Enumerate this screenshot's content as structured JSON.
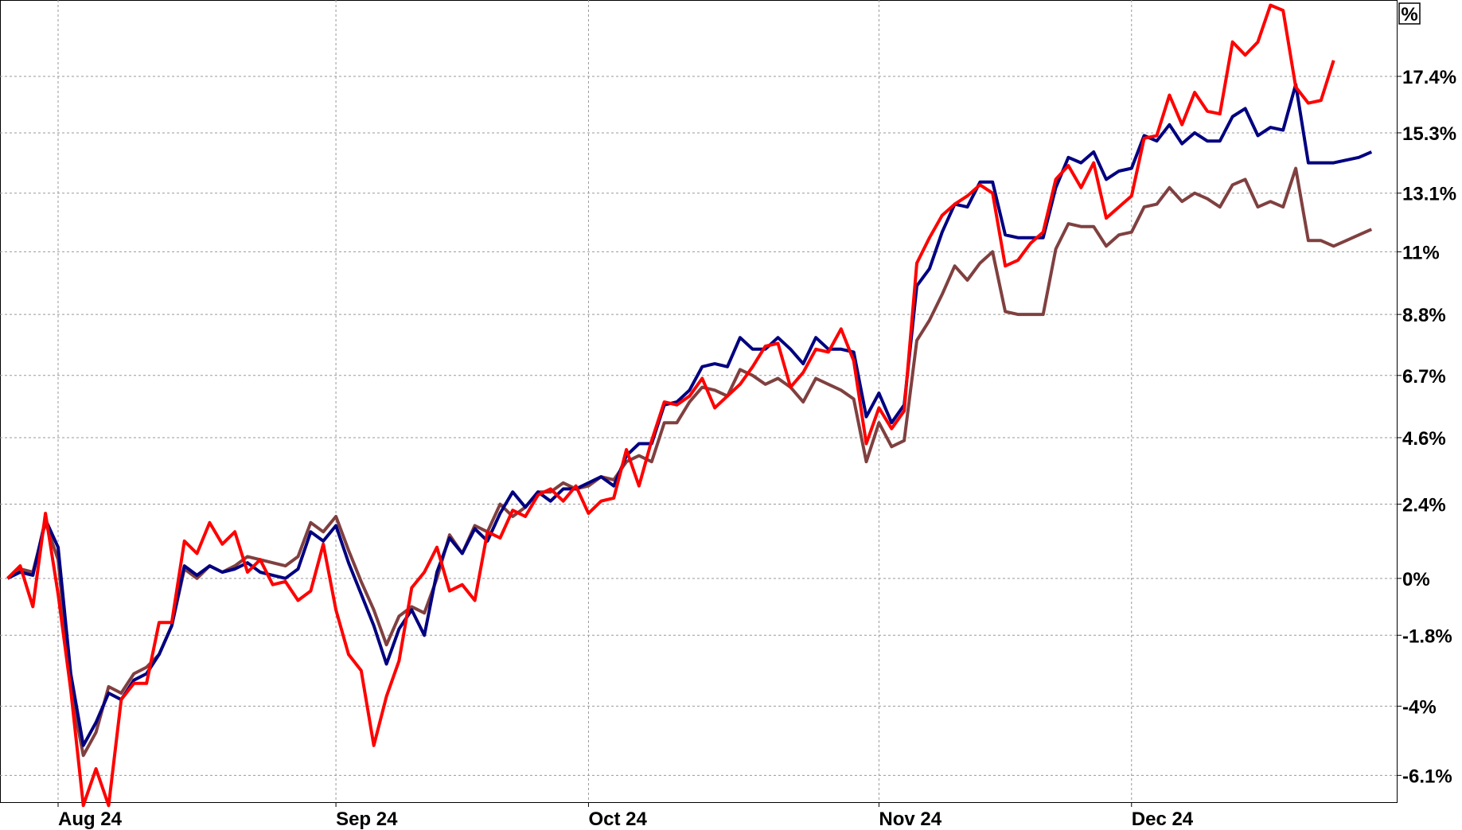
{
  "chart_data": {
    "type": "line",
    "y_label": "%",
    "log_scale": true,
    "grid": true,
    "x": [
      0,
      1,
      2,
      3,
      4,
      5,
      6,
      7,
      8,
      9,
      10,
      11,
      12,
      13,
      14,
      15,
      16,
      17,
      18,
      19,
      20,
      21,
      22,
      23,
      24,
      25,
      26,
      27,
      28,
      29,
      30,
      31,
      32,
      33,
      34,
      35,
      36,
      37,
      38,
      39,
      40,
      41,
      42,
      43,
      44,
      45,
      46,
      47,
      48,
      49,
      50,
      51,
      52,
      53,
      54,
      55,
      56,
      57,
      58,
      59,
      60,
      61,
      62,
      63,
      64,
      65,
      66,
      67,
      68,
      69,
      70,
      71,
      72,
      73,
      74,
      75,
      76,
      77,
      78,
      79,
      80,
      81,
      82,
      83,
      84,
      85,
      86,
      87,
      88,
      89,
      90,
      91,
      92,
      93,
      94,
      95,
      96,
      97,
      98,
      99,
      100,
      101,
      102,
      103,
      104,
      105,
      106,
      107,
      108
    ],
    "xlim": [
      -0.6,
      110
    ],
    "xticks": [
      {
        "value": 4,
        "label": "Aug 24"
      },
      {
        "value": 26,
        "label": "Sep 24"
      },
      {
        "value": 46,
        "label": "Oct 24"
      },
      {
        "value": 69,
        "label": "Nov 24"
      },
      {
        "value": 89,
        "label": "Dec 24"
      }
    ],
    "ylim": [
      -6.9,
      20.3
    ],
    "yticks": [
      {
        "value": -6.1,
        "label": "-6.1%"
      },
      {
        "value": -4,
        "label": "-4%"
      },
      {
        "value": -1.8,
        "label": "-1.8%"
      },
      {
        "value": 0,
        "label": "0%"
      },
      {
        "value": 2.4,
        "label": "2.4%"
      },
      {
        "value": 4.6,
        "label": "4.6%"
      },
      {
        "value": 6.7,
        "label": "6.7%"
      },
      {
        "value": 8.8,
        "label": "8.8%"
      },
      {
        "value": 11,
        "label": "11%"
      },
      {
        "value": 13.1,
        "label": "13.1%"
      },
      {
        "value": 15.3,
        "label": "15.3%"
      },
      {
        "value": 17.4,
        "label": "17.4%"
      }
    ],
    "series": [
      {
        "color": "#804040",
        "values": [
          0,
          0.3,
          0.2,
          1.8,
          0.6,
          -3.5,
          -5.5,
          -4.8,
          -3.4,
          -3.6,
          -3.0,
          -2.8,
          -2.4,
          -1.5,
          0.3,
          0.0,
          0.4,
          0.2,
          0.4,
          0.7,
          0.6,
          0.5,
          0.4,
          0.7,
          1.8,
          1.5,
          2.0,
          0.9,
          -0.1,
          -1.0,
          -2.1,
          -1.2,
          -0.9,
          -1.1,
          0.0,
          1.4,
          0.8,
          1.7,
          1.5,
          2.4,
          2.0,
          2.3,
          2.8,
          2.8,
          3.1,
          2.9,
          3.0,
          3.3,
          3.2,
          3.8,
          4.0,
          3.8,
          5.1,
          5.1,
          5.8,
          6.3,
          6.2,
          6.0,
          6.9,
          6.7,
          6.4,
          6.6,
          6.3,
          5.8,
          6.6,
          6.4,
          6.2,
          5.9,
          3.8,
          5.1,
          4.3,
          4.5,
          7.9,
          8.6,
          9.5,
          10.5,
          10.0,
          10.6,
          11.0,
          8.9,
          8.8,
          8.8,
          8.8,
          11.1,
          12.0,
          11.9,
          11.9,
          11.2,
          11.6,
          11.7,
          12.6,
          12.7,
          13.3,
          12.8,
          13.1,
          12.9,
          12.6,
          13.4,
          13.6,
          12.6,
          12.8,
          12.6,
          14.0,
          11.4,
          11.4,
          11.2,
          11.4,
          11.6,
          11.8
        ]
      },
      {
        "color": "#000080",
        "values": [
          0,
          0.2,
          0.1,
          1.9,
          1.0,
          -3.0,
          -5.2,
          -4.5,
          -3.6,
          -3.8,
          -3.2,
          -3.0,
          -2.4,
          -1.5,
          0.4,
          0.1,
          0.4,
          0.2,
          0.3,
          0.5,
          0.2,
          0.1,
          0.0,
          0.3,
          1.5,
          1.2,
          1.7,
          0.5,
          -0.5,
          -1.5,
          -2.7,
          -1.6,
          -1.0,
          -1.8,
          0.2,
          1.3,
          0.8,
          1.6,
          1.2,
          2.1,
          2.8,
          2.3,
          2.8,
          2.5,
          2.9,
          2.9,
          3.1,
          3.3,
          3.0,
          4.0,
          4.4,
          4.4,
          5.7,
          5.8,
          6.2,
          7.0,
          7.1,
          7.0,
          8.0,
          7.6,
          7.6,
          8.0,
          7.6,
          7.1,
          8.0,
          7.6,
          7.6,
          7.5,
          5.3,
          6.1,
          5.1,
          5.7,
          9.8,
          10.4,
          11.7,
          12.7,
          12.6,
          13.5,
          13.5,
          11.6,
          11.5,
          11.5,
          11.5,
          13.3,
          14.4,
          14.2,
          14.6,
          13.6,
          13.9,
          14.0,
          15.2,
          15.0,
          15.6,
          14.9,
          15.3,
          15.0,
          15.0,
          15.9,
          16.2,
          15.2,
          15.5,
          15.4,
          17.1,
          14.2,
          14.2,
          14.2,
          14.3,
          14.4,
          14.6
        ]
      },
      {
        "color": "#ff0000",
        "values": [
          0,
          0.4,
          -0.9,
          2.1,
          -0.5,
          -3.5,
          -7.0,
          -5.9,
          -7.0,
          -3.8,
          -3.3,
          -3.3,
          -1.4,
          -1.4,
          1.2,
          0.8,
          1.8,
          1.1,
          1.5,
          0.2,
          0.6,
          -0.2,
          -0.1,
          -0.7,
          -0.4,
          1.1,
          -1.0,
          -2.4,
          -2.9,
          -5.2,
          -3.7,
          -2.6,
          -0.3,
          0.2,
          1.0,
          -0.4,
          -0.2,
          -0.7,
          1.5,
          1.3,
          2.2,
          2.0,
          2.7,
          2.9,
          2.5,
          3.0,
          2.1,
          2.5,
          2.6,
          4.2,
          3.0,
          4.5,
          5.8,
          5.7,
          6.0,
          6.6,
          5.6,
          6.0,
          6.4,
          7.0,
          7.7,
          7.8,
          6.3,
          6.8,
          7.6,
          7.5,
          8.3,
          7.2,
          4.4,
          5.6,
          4.9,
          5.5,
          10.6,
          11.5,
          12.3,
          12.7,
          13.0,
          13.4,
          13.1,
          10.5,
          10.7,
          11.3,
          11.7,
          13.6,
          14.1,
          13.3,
          14.2,
          12.2,
          12.6,
          13.0,
          15.1,
          15.2,
          16.7,
          15.6,
          16.8,
          16.1,
          16.0,
          18.7,
          18.2,
          18.7,
          20.1,
          19.9,
          17.0,
          16.4,
          16.5,
          18.0,
          null,
          null,
          null
        ]
      }
    ]
  }
}
